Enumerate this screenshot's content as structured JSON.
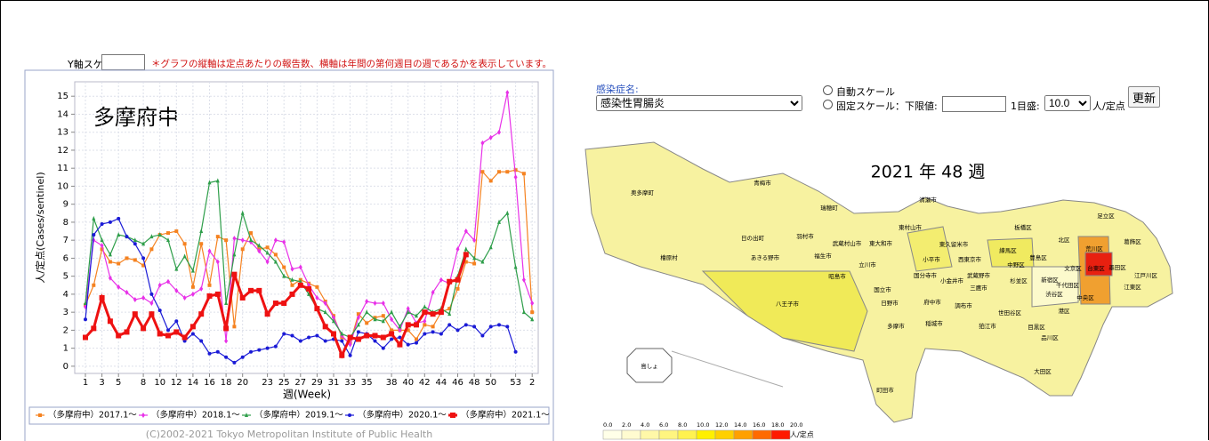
{
  "chart_data": {
    "type": "line",
    "annotation": "多摩府中",
    "y_label": "人/定点(Cases/sentinel)",
    "x_label": "週(Week)",
    "footer": "(C)2002-2021 Tokyo Metropolitan Institute of Public Health",
    "categories": [
      1,
      null,
      3,
      null,
      5,
      null,
      null,
      8,
      null,
      10,
      null,
      12,
      null,
      14,
      null,
      16,
      null,
      18,
      null,
      20,
      null,
      null,
      23,
      null,
      25,
      null,
      27,
      null,
      29,
      null,
      31,
      null,
      33,
      null,
      35,
      null,
      null,
      38,
      null,
      40,
      null,
      42,
      null,
      44,
      null,
      46,
      null,
      48,
      null,
      50,
      null,
      null,
      53,
      null,
      2
    ],
    "ylim": [
      -0.4,
      15.8
    ],
    "yticks": [
      0,
      1,
      2,
      3,
      4,
      5,
      6,
      7,
      8,
      9,
      10,
      11,
      12,
      13,
      14,
      15
    ],
    "grid": true,
    "series": [
      {
        "name": "（多摩府中）2017.1～",
        "color": "#f58220",
        "marker": "square",
        "values": [
          3.4,
          4.5,
          6.5,
          5.8,
          5.7,
          6.0,
          5.9,
          5.6,
          6.5,
          7.3,
          7.4,
          7.5,
          6.8,
          4.4,
          6.8,
          4.5,
          7.2,
          7.0,
          2.2,
          6.5,
          7.4,
          6.5,
          6.6,
          6.2,
          5.5,
          4.5,
          4.8,
          4.6,
          4.4,
          3.6,
          2.8,
          1.6,
          1.3,
          2.9,
          2.4,
          2.7,
          2.8,
          2.0,
          2.0,
          2.0,
          1.5,
          2.3,
          2.2,
          3.0,
          3.2,
          4.3,
          5.8,
          5.7,
          10.8,
          10.3,
          10.8,
          10.8,
          10.9,
          10.7,
          3.0
        ]
      },
      {
        "name": "（多摩府中）2018.1～",
        "color": "#e831e8",
        "marker": "diamond",
        "values": [
          3.3,
          7.0,
          6.7,
          4.9,
          4.4,
          4.1,
          3.7,
          3.8,
          3.5,
          4.5,
          4.7,
          4.2,
          3.8,
          4.0,
          4.3,
          6.4,
          5.8,
          1.4,
          7.1,
          7.0,
          6.9,
          6.4,
          5.8,
          7.0,
          6.9,
          5.4,
          5.5,
          4.5,
          3.8,
          3.5,
          2.7,
          1.7,
          1.2,
          2.7,
          3.6,
          3.5,
          3.5,
          2.6,
          2.0,
          3.2,
          2.4,
          2.5,
          4.1,
          4.8,
          4.6,
          6.5,
          7.5,
          7.0,
          12.4,
          12.7,
          13.0,
          15.2,
          10.5,
          4.8,
          3.5
        ]
      },
      {
        "name": "（多摩府中）2019.1～",
        "color": "#2e9e4a",
        "marker": "triangle",
        "values": [
          3.5,
          8.2,
          7.0,
          6.2,
          7.3,
          7.2,
          7.0,
          6.8,
          7.2,
          7.3,
          7.0,
          5.4,
          6.1,
          5.3,
          7.5,
          10.2,
          10.3,
          3.5,
          6.2,
          8.5,
          7.0,
          6.7,
          6.3,
          5.8,
          5.0,
          4.8,
          4.7,
          4.0,
          3.2,
          3.0,
          2.5,
          1.8,
          1.6,
          2.3,
          3.0,
          2.6,
          2.5,
          3.0,
          2.2,
          3.0,
          2.8,
          3.3,
          3.0,
          3.2,
          2.9,
          5.0,
          6.5,
          6.0,
          5.8,
          6.6,
          8.0,
          8.5,
          5.5,
          3.0,
          2.6
        ]
      },
      {
        "name": "（多摩府中）2020.1～",
        "color": "#1a1ad6",
        "marker": "circle",
        "values": [
          2.6,
          7.3,
          7.9,
          8.0,
          8.2,
          7.2,
          6.8,
          6.0,
          4.0,
          3.1,
          2.0,
          2.5,
          1.4,
          1.8,
          1.4,
          0.7,
          0.8,
          0.5,
          0.2,
          0.5,
          0.8,
          0.9,
          1.0,
          1.1,
          1.8,
          1.7,
          1.4,
          1.6,
          1.7,
          1.4,
          1.5,
          1.4,
          0.6,
          1.9,
          1.8,
          1.4,
          1.0,
          1.5,
          1.6,
          1.2,
          1.3,
          1.8,
          1.9,
          1.8,
          2.3,
          2.0,
          2.3,
          2.2,
          1.7,
          2.2,
          2.3,
          2.2,
          0.8,
          null,
          null
        ]
      },
      {
        "name": "（多摩府中）2021.1～",
        "color": "#ee1111",
        "marker": "square",
        "thick": true,
        "values": [
          1.6,
          2.1,
          3.8,
          2.5,
          1.7,
          1.9,
          2.9,
          2.1,
          2.9,
          1.8,
          1.7,
          1.9,
          1.6,
          2.2,
          2.9,
          3.9,
          4.0,
          2.1,
          5.1,
          3.8,
          4.2,
          4.2,
          2.9,
          3.5,
          3.5,
          4.0,
          4.5,
          4.3,
          3.2,
          2.2,
          1.8,
          0.6,
          1.6,
          1.5,
          1.7,
          1.7,
          1.6,
          1.8,
          1.2,
          2.3,
          2.3,
          3.0,
          2.9,
          3.0,
          4.7,
          4.8,
          6.2,
          null,
          null,
          null,
          null,
          null,
          null,
          null,
          null
        ]
      }
    ]
  },
  "ui": {
    "y_scale_label": "Y軸スケール：",
    "note": "＊グラフの縦軸は定点あたりの報告数、横軸は年間の第何週目の週であるかを表示しています。",
    "disease_label": "感染症名:",
    "disease": "感染性胃腸炎",
    "auto_scale": "自動スケール",
    "fixed_scale": "固定スケール：下限値:",
    "step_label": "1目盛:",
    "step": "10.0",
    "unit": "人/定点",
    "button": "更新"
  },
  "map": {
    "title": "2021 年 48 週",
    "regions": [
      "奥多摩町",
      "青梅市",
      "日の出町",
      "羽村市",
      "瑞穂町",
      "武蔵村山市",
      "東大和市",
      "東村山市",
      "清瀬市",
      "東久留米市",
      "あきる野市",
      "檜原村",
      "福生市",
      "立川市",
      "昭島市",
      "小平市",
      "西東京市",
      "練馬区",
      "板橋区",
      "北区",
      "足立区",
      "葛飾区",
      "荒川区",
      "豊島区",
      "中野区",
      "文京区",
      "台東区",
      "墨田区",
      "江戸川区",
      "国分寺市",
      "国立市",
      "小金井市",
      "武蔵野市",
      "三鷹市",
      "杉並区",
      "新宿区",
      "千代田区",
      "中央区",
      "江東区",
      "渋谷区",
      "港区",
      "日野市",
      "府中市",
      "調布市",
      "世田谷区",
      "目黒区",
      "品川区",
      "大田区",
      "狛江市",
      "多摩市",
      "稲城市",
      "八王子市",
      "町田市",
      "島しょ"
    ],
    "legend": {
      "labels": [
        "0.0",
        "2.0",
        "4.0",
        "6.0",
        "8.0",
        "10.0",
        "12.0",
        "14.0",
        "16.0",
        "18.0",
        "20.0"
      ],
      "colors": [
        "#ffffe8",
        "#fffbd0",
        "#fff8a8",
        "#fff580",
        "#fff250",
        "#fff000",
        "#ffd000",
        "#ffa000",
        "#ff6a00",
        "#ff1a00"
      ],
      "unit": "人/定点"
    }
  }
}
